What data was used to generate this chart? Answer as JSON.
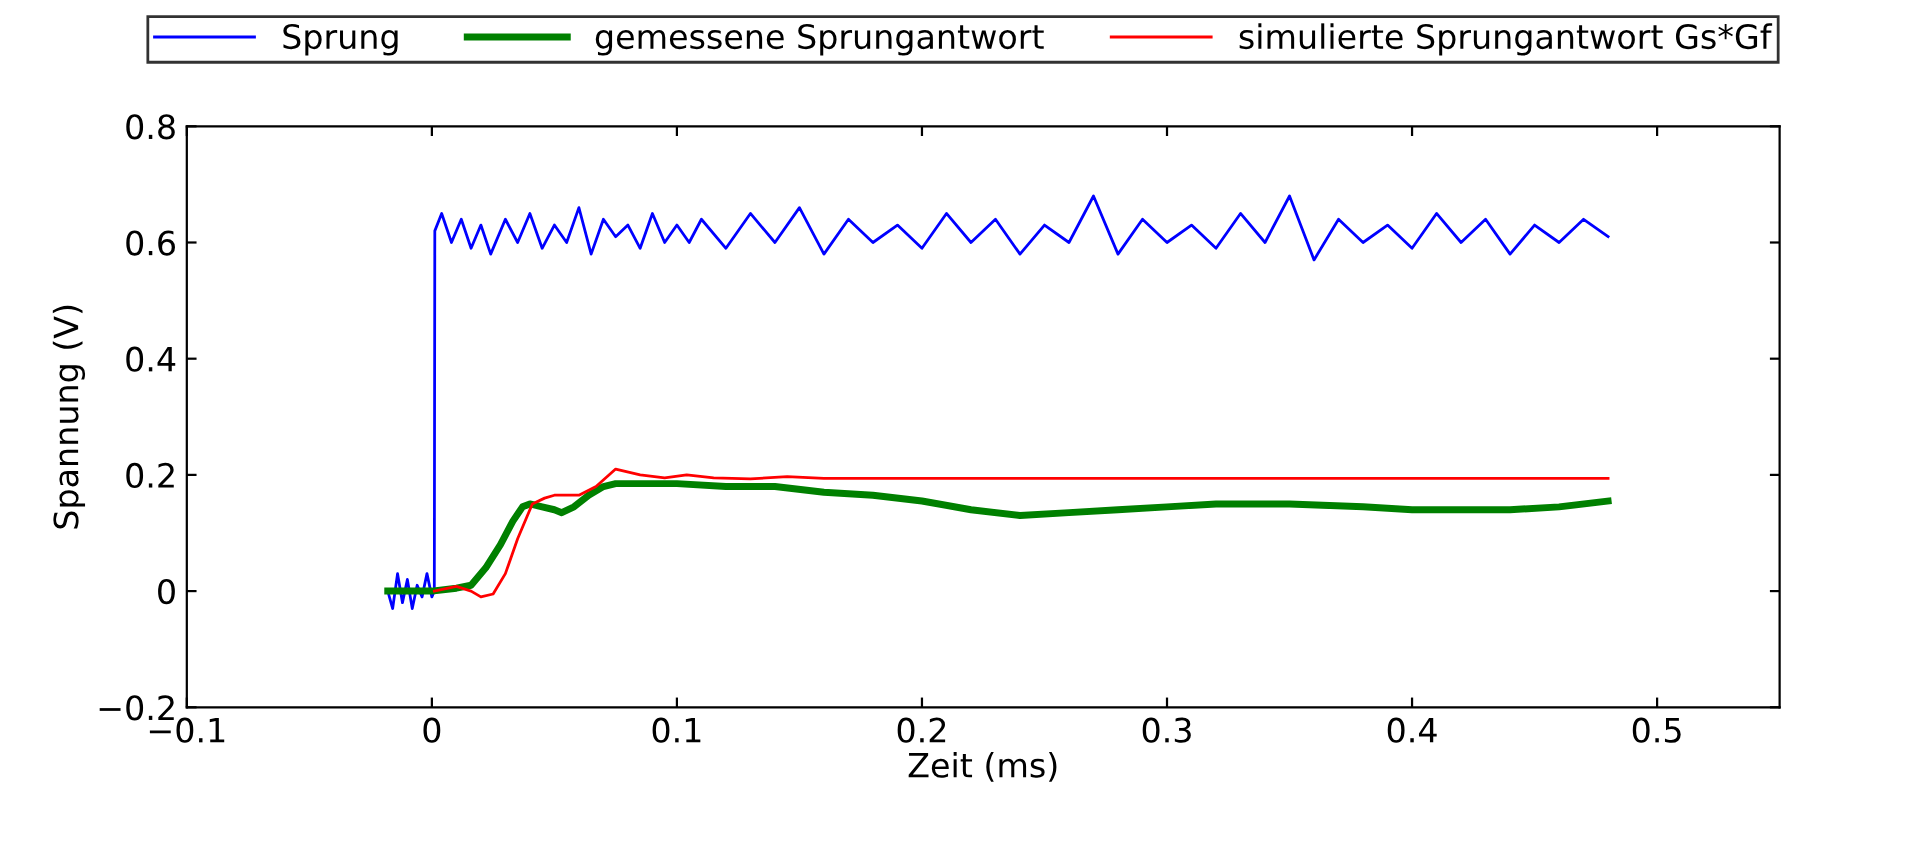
{
  "chart_data": {
    "type": "line",
    "xlabel": "Zeit (ms)",
    "ylabel": "Spannung (V)",
    "xlim": [
      -0.1,
      0.55
    ],
    "ylim": [
      -0.2,
      0.8
    ],
    "xticks": [
      {
        "value": -0.1,
        "label": "−0.1"
      },
      0,
      0.1,
      0.2,
      0.3,
      0.4,
      0.5
    ],
    "yticks": [
      {
        "value": -0.2,
        "label": "−0.2"
      },
      0,
      0.2,
      0.4,
      0.6,
      0.8
    ],
    "grid": false,
    "legend": "top",
    "line_style": "solid",
    "marker": "none",
    "series": [
      {
        "name": "Sprung",
        "color": "#0000ff",
        "x": [
          -0.018,
          -0.016,
          -0.014,
          -0.012,
          -0.01,
          -0.008,
          -0.006,
          -0.004,
          -0.002,
          0.0,
          0.001,
          0.0012,
          0.004,
          0.008,
          0.012,
          0.016,
          0.02,
          0.024,
          0.03,
          0.035,
          0.04,
          0.045,
          0.05,
          0.055,
          0.06,
          0.065,
          0.07,
          0.075,
          0.08,
          0.085,
          0.09,
          0.095,
          0.1,
          0.105,
          0.11,
          0.12,
          0.13,
          0.14,
          0.15,
          0.16,
          0.17,
          0.18,
          0.19,
          0.2,
          0.21,
          0.22,
          0.23,
          0.24,
          0.25,
          0.26,
          0.27,
          0.28,
          0.29,
          0.3,
          0.31,
          0.32,
          0.33,
          0.34,
          0.35,
          0.36,
          0.37,
          0.38,
          0.39,
          0.4,
          0.41,
          0.42,
          0.43,
          0.44,
          0.45,
          0.46,
          0.47,
          0.48
        ],
        "values": [
          0.0,
          -0.03,
          0.03,
          -0.02,
          0.02,
          -0.03,
          0.01,
          -0.01,
          0.03,
          -0.01,
          0.0,
          0.62,
          0.65,
          0.6,
          0.64,
          0.59,
          0.63,
          0.58,
          0.64,
          0.6,
          0.65,
          0.59,
          0.63,
          0.6,
          0.66,
          0.58,
          0.64,
          0.61,
          0.63,
          0.59,
          0.65,
          0.6,
          0.63,
          0.6,
          0.64,
          0.59,
          0.65,
          0.6,
          0.66,
          0.58,
          0.64,
          0.6,
          0.63,
          0.59,
          0.65,
          0.6,
          0.64,
          0.58,
          0.63,
          0.6,
          0.68,
          0.58,
          0.64,
          0.6,
          0.63,
          0.59,
          0.65,
          0.6,
          0.68,
          0.57,
          0.64,
          0.6,
          0.63,
          0.59,
          0.65,
          0.6,
          0.64,
          0.58,
          0.63,
          0.6,
          0.64,
          0.61
        ]
      },
      {
        "name": "gemessene Sprungantwort",
        "color": "#008000",
        "x": [
          -0.018,
          -0.01,
          0.0,
          0.01,
          0.016,
          0.022,
          0.028,
          0.033,
          0.037,
          0.04,
          0.045,
          0.05,
          0.053,
          0.058,
          0.064,
          0.07,
          0.075,
          0.085,
          0.1,
          0.12,
          0.14,
          0.16,
          0.18,
          0.2,
          0.22,
          0.24,
          0.26,
          0.28,
          0.3,
          0.32,
          0.35,
          0.38,
          0.4,
          0.42,
          0.44,
          0.46,
          0.48
        ],
        "values": [
          0.0,
          0.0,
          0.0,
          0.005,
          0.01,
          0.04,
          0.08,
          0.12,
          0.145,
          0.15,
          0.145,
          0.14,
          0.135,
          0.145,
          0.165,
          0.18,
          0.185,
          0.185,
          0.185,
          0.18,
          0.18,
          0.17,
          0.165,
          0.155,
          0.14,
          0.13,
          0.135,
          0.14,
          0.145,
          0.15,
          0.15,
          0.145,
          0.14,
          0.14,
          0.14,
          0.145,
          0.155
        ]
      },
      {
        "name": "simulierte Sprungantwort Gs*Gf",
        "color": "#ff0000",
        "x": [
          0.001,
          0.01,
          0.016,
          0.02,
          0.025,
          0.03,
          0.035,
          0.041,
          0.046,
          0.05,
          0.06,
          0.067,
          0.075,
          0.085,
          0.095,
          0.104,
          0.115,
          0.13,
          0.145,
          0.16,
          0.2,
          0.3,
          0.4,
          0.48
        ],
        "values": [
          0.0,
          0.008,
          0.0,
          -0.01,
          -0.005,
          0.03,
          0.09,
          0.15,
          0.16,
          0.165,
          0.165,
          0.18,
          0.21,
          0.2,
          0.195,
          0.2,
          0.195,
          0.193,
          0.197,
          0.194,
          0.194,
          0.194,
          0.194,
          0.194
        ]
      }
    ]
  }
}
